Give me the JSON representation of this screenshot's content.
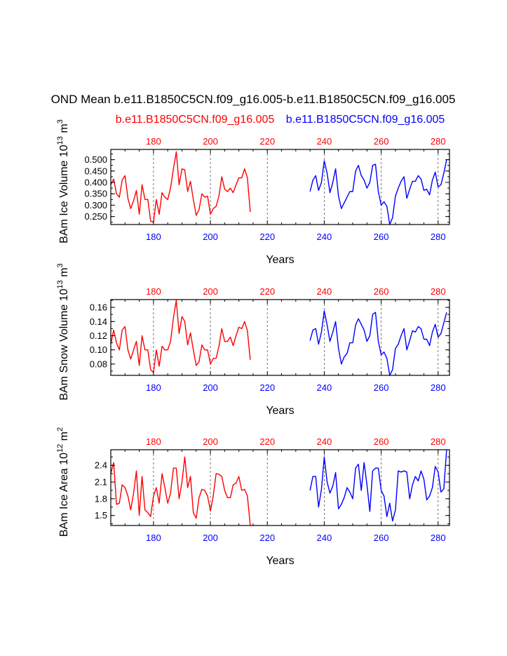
{
  "title": "OND Mean b.e11.B1850C5CN.f09_g16.005-b.e11.B1850C5CN.f09_g16.005",
  "legend": {
    "left_name": "b.e11.B1850C5CN.f09_g16.005",
    "right_name": "b.e11.B1850C5CN.f09_g16.005",
    "left_color": "#ff0000",
    "right_color": "#0000ff"
  },
  "chart_data": [
    {
      "type": "line",
      "ylabel": "BAm Ice Volume 10",
      "ylabel_exp": "13",
      "ylabel_unit": " m",
      "ylabel_unit_exp": "3",
      "xlabel": "Years",
      "xlim": [
        165,
        284
      ],
      "ylim": [
        0.215,
        0.545
      ],
      "yticks": [
        0.25,
        0.3,
        0.35,
        0.4,
        0.45,
        0.5
      ],
      "ytick_labels": [
        "0.250",
        "0.300",
        "0.350",
        "0.400",
        "0.450",
        "0.500"
      ],
      "top_ticks": [
        "180",
        "200",
        "220",
        "240",
        "260",
        "280"
      ],
      "bottom_ticks": [
        "180",
        "200",
        "220",
        "240",
        "260",
        "280"
      ],
      "series": [
        {
          "color": "#ff0000",
          "x_start": 165,
          "values": [
            0.39,
            0.415,
            0.35,
            0.335,
            0.41,
            0.43,
            0.33,
            0.285,
            0.32,
            0.365,
            0.26,
            0.39,
            0.325,
            0.325,
            0.23,
            0.225,
            0.325,
            0.26,
            0.355,
            0.335,
            0.325,
            0.375,
            0.46,
            0.535,
            0.39,
            0.46,
            0.455,
            0.36,
            0.405,
            0.325,
            0.255,
            0.28,
            0.35,
            0.335,
            0.34,
            0.26,
            0.285,
            0.295,
            0.34,
            0.425,
            0.37,
            0.36,
            0.375,
            0.355,
            0.39,
            0.42,
            0.42,
            0.46,
            0.42,
            0.27
          ]
        },
        {
          "color": "#0000ff",
          "x_start": 235,
          "values": [
            0.36,
            0.41,
            0.43,
            0.365,
            0.4,
            0.495,
            0.44,
            0.355,
            0.4,
            0.46,
            0.34,
            0.285,
            0.31,
            0.335,
            0.36,
            0.36,
            0.45,
            0.475,
            0.43,
            0.41,
            0.375,
            0.4,
            0.475,
            0.48,
            0.36,
            0.3,
            0.315,
            0.295,
            0.215,
            0.245,
            0.34,
            0.375,
            0.405,
            0.425,
            0.33,
            0.37,
            0.405,
            0.405,
            0.43,
            0.415,
            0.365,
            0.37,
            0.345,
            0.41,
            0.445,
            0.38,
            0.39,
            0.44,
            0.5
          ]
        }
      ]
    },
    {
      "type": "line",
      "ylabel": "BAm Snow Volume 10",
      "ylabel_exp": "13",
      "ylabel_unit": " m",
      "ylabel_unit_exp": "3",
      "xlabel": "Years",
      "xlim": [
        165,
        284
      ],
      "ylim": [
        0.064,
        0.171
      ],
      "yticks": [
        0.08,
        0.1,
        0.12,
        0.14,
        0.16
      ],
      "ytick_labels": [
        "0.08",
        "0.10",
        "0.12",
        "0.14",
        "0.16"
      ],
      "top_ticks": [
        "180",
        "200",
        "220",
        "240",
        "260",
        "280"
      ],
      "bottom_ticks": [
        "180",
        "200",
        "220",
        "240",
        "260",
        "280"
      ],
      "series": [
        {
          "color": "#ff0000",
          "x_start": 165,
          "values": [
            0.108,
            0.128,
            0.11,
            0.1,
            0.128,
            0.133,
            0.1,
            0.087,
            0.1,
            0.112,
            0.078,
            0.12,
            0.1,
            0.1,
            0.072,
            0.068,
            0.1,
            0.077,
            0.105,
            0.1,
            0.1,
            0.112,
            0.145,
            0.17,
            0.123,
            0.147,
            0.14,
            0.107,
            0.124,
            0.1,
            0.078,
            0.083,
            0.107,
            0.1,
            0.1,
            0.08,
            0.088,
            0.088,
            0.105,
            0.13,
            0.112,
            0.112,
            0.118,
            0.106,
            0.12,
            0.132,
            0.13,
            0.14,
            0.127,
            0.086
          ]
        },
        {
          "color": "#0000ff",
          "x_start": 235,
          "values": [
            0.113,
            0.128,
            0.13,
            0.108,
            0.125,
            0.155,
            0.135,
            0.112,
            0.125,
            0.14,
            0.102,
            0.08,
            0.09,
            0.095,
            0.11,
            0.11,
            0.135,
            0.144,
            0.136,
            0.128,
            0.112,
            0.12,
            0.15,
            0.153,
            0.112,
            0.093,
            0.097,
            0.088,
            0.064,
            0.072,
            0.102,
            0.108,
            0.12,
            0.13,
            0.1,
            0.113,
            0.127,
            0.125,
            0.133,
            0.13,
            0.115,
            0.115,
            0.106,
            0.125,
            0.136,
            0.118,
            0.123,
            0.138,
            0.153
          ]
        }
      ]
    },
    {
      "type": "line",
      "ylabel": "BAm Ice Area 10",
      "ylabel_exp": "12",
      "ylabel_unit": " m",
      "ylabel_unit_exp": "2",
      "xlabel": "Years",
      "xlim": [
        165,
        284
      ],
      "ylim": [
        1.32,
        2.68
      ],
      "yticks": [
        1.5,
        1.8,
        2.1,
        2.4
      ],
      "ytick_labels": [
        "1.5",
        "1.8",
        "2.1",
        "2.4"
      ],
      "top_ticks": [
        "180",
        "200",
        "220",
        "240",
        "260",
        "280"
      ],
      "bottom_ticks": [
        "180",
        "200",
        "220",
        "240",
        "260",
        "280"
      ],
      "series": [
        {
          "color": "#ff0000",
          "x_start": 165,
          "values": [
            2.25,
            2.45,
            1.7,
            1.72,
            2.05,
            2.0,
            1.85,
            1.6,
            1.9,
            2.3,
            1.5,
            2.2,
            1.6,
            1.55,
            1.48,
            1.85,
            2.0,
            1.72,
            2.25,
            2.0,
            1.72,
            1.9,
            2.35,
            2.35,
            1.8,
            2.1,
            2.55,
            2.0,
            2.2,
            1.55,
            1.45,
            1.82,
            1.97,
            1.95,
            1.85,
            1.58,
            1.85,
            2.25,
            2.24,
            2.2,
            1.95,
            1.82,
            1.82,
            2.05,
            2.08,
            2.2,
            1.95,
            1.97,
            1.85,
            1.32
          ]
        },
        {
          "color": "#0000ff",
          "x_start": 235,
          "values": [
            1.95,
            2.2,
            2.2,
            1.65,
            1.97,
            2.55,
            2.1,
            1.9,
            2.03,
            2.27,
            1.62,
            1.7,
            1.82,
            2.0,
            1.92,
            1.8,
            2.35,
            2.42,
            1.95,
            2.45,
            2.05,
            1.57,
            2.3,
            2.35,
            2.35,
            1.95,
            1.85,
            1.48,
            1.72,
            1.4,
            1.6,
            2.3,
            2.28,
            2.3,
            2.28,
            1.8,
            2.05,
            2.2,
            2.12,
            2.3,
            2.15,
            1.78,
            1.85,
            2.0,
            2.38,
            2.28,
            1.92,
            1.98,
            2.68
          ]
        }
      ]
    }
  ]
}
